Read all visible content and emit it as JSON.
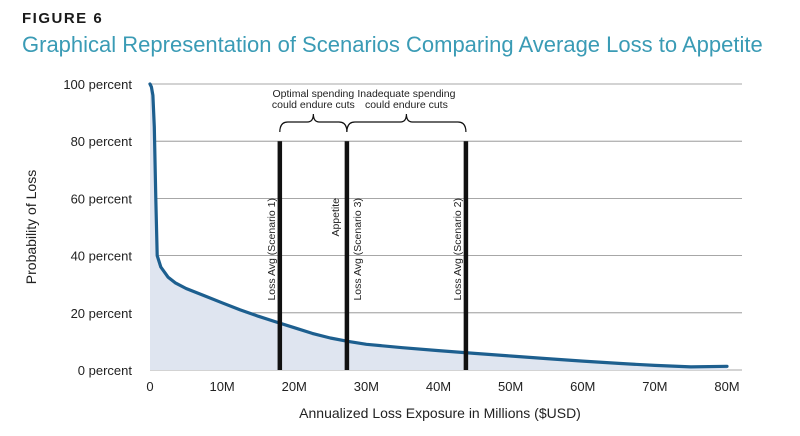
{
  "figure_label": "FIGURE 6",
  "title": "Graphical Representation of Scenarios Comparing Average Loss to Appetite",
  "chart_data": {
    "type": "area",
    "xlabel": "Annualized Loss Exposure in Millions ($USD)",
    "ylabel": "Probability of Loss",
    "xlim": [
      0,
      80
    ],
    "ylim": [
      0,
      100
    ],
    "x_ticks": [
      {
        "value": 0,
        "label": "0"
      },
      {
        "value": 10,
        "label": "10M"
      },
      {
        "value": 20,
        "label": "20M"
      },
      {
        "value": 30,
        "label": "30M"
      },
      {
        "value": 40,
        "label": "40M"
      },
      {
        "value": 50,
        "label": "50M"
      },
      {
        "value": 60,
        "label": "60M"
      },
      {
        "value": 70,
        "label": "70M"
      },
      {
        "value": 80,
        "label": "80M"
      }
    ],
    "y_ticks": [
      {
        "value": 0,
        "label": "0 percent"
      },
      {
        "value": 20,
        "label": "20 percent"
      },
      {
        "value": 40,
        "label": "40 percent"
      },
      {
        "value": 60,
        "label": "60 percent"
      },
      {
        "value": 80,
        "label": "80 percent"
      },
      {
        "value": 100,
        "label": "100 percent"
      }
    ],
    "grid": true,
    "series": [
      {
        "name": "Probability of Loss",
        "x": [
          0,
          0.2,
          0.4,
          0.6,
          0.8,
          1.0,
          1.5,
          2.5,
          3.5,
          5,
          7.5,
          10,
          12.5,
          15,
          17.5,
          20,
          22.5,
          25,
          27.5,
          30,
          35,
          40,
          45,
          50,
          55,
          60,
          65,
          70,
          75,
          80
        ],
        "y": [
          100,
          99,
          96,
          85,
          60,
          40,
          36,
          32.5,
          30.5,
          28.5,
          26,
          23.5,
          21,
          18.8,
          16.8,
          14.8,
          12.8,
          11.2,
          10,
          9,
          7.8,
          6.8,
          5.8,
          4.9,
          4.0,
          3.1,
          2.3,
          1.6,
          1.1,
          1.3
        ]
      }
    ],
    "vertical_lines": [
      {
        "x": 18,
        "label": "Loss Avg (Scenario 1)"
      },
      {
        "x": 27.3,
        "label": "Appetite"
      },
      {
        "x": 27.3,
        "label": "Loss Avg (Scenario 3)"
      },
      {
        "x": 43.8,
        "label": "Loss Avg (Scenario 2)"
      }
    ],
    "annotations": [
      {
        "from_x": 18,
        "to_x": 27.3,
        "lines": [
          "Optimal spending",
          "could endure cuts"
        ]
      },
      {
        "from_x": 27.3,
        "to_x": 43.8,
        "lines": [
          "Inadequate spending",
          "could endure cuts"
        ]
      }
    ],
    "colors": {
      "line": "#1d5f8f",
      "fill": "#dfe5f0",
      "grid": "#8a8a8a",
      "vline": "#111111",
      "text": "#222222"
    }
  }
}
